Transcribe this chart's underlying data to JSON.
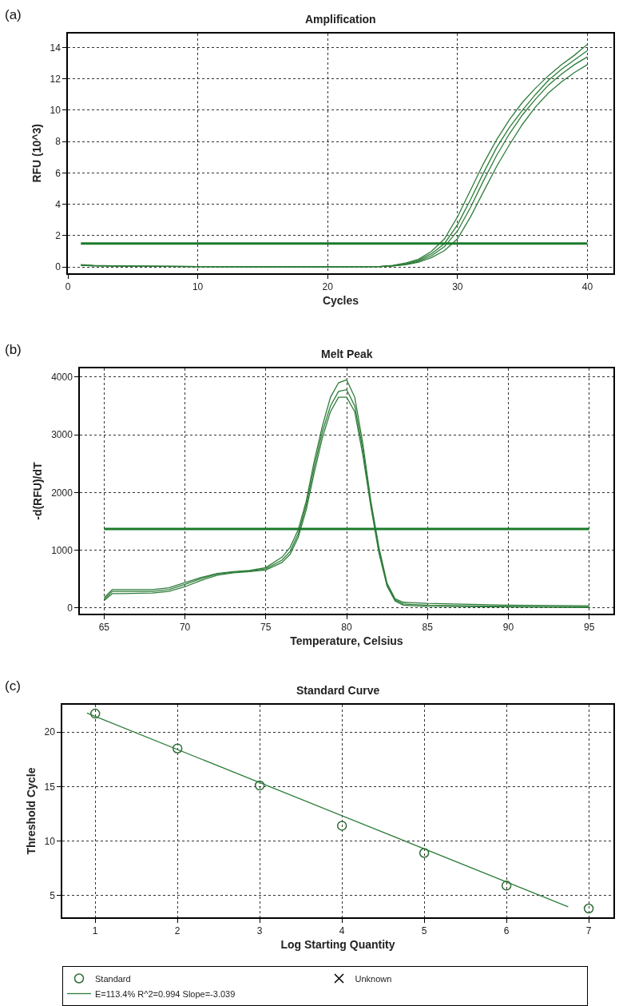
{
  "chart_data": [
    {
      "type": "line",
      "title": "Amplification",
      "xlabel": "Cycles",
      "ylabel": "RFU (10^3)",
      "annotations": [
        "(a)"
      ],
      "xlim": [
        0,
        42
      ],
      "ylim": [
        -0.4,
        14.9
      ],
      "xticks": [
        0,
        10,
        20,
        30,
        40
      ],
      "yticks": [
        0,
        2,
        4,
        6,
        8,
        10,
        12,
        14
      ],
      "grid": true,
      "line_style": "solid",
      "ref_lines": [
        {
          "axis": "y",
          "value": 1.5,
          "color": "#1a7a2a"
        }
      ],
      "series": [
        {
          "color": "#2e7d3a",
          "x": [
            1,
            2,
            5,
            10,
            15,
            20,
            24,
            25,
            26,
            27,
            28,
            29,
            30,
            31,
            32,
            33,
            34,
            35,
            36,
            37,
            38,
            39,
            40
          ],
          "values": [
            0.15,
            0.1,
            0.05,
            0.03,
            0.02,
            0.02,
            0.03,
            0.1,
            0.25,
            0.5,
            1.0,
            1.8,
            3.2,
            4.9,
            6.6,
            8.1,
            9.4,
            10.5,
            11.4,
            12.2,
            12.9,
            13.5,
            14.2
          ]
        },
        {
          "color": "#2e7d3a",
          "x": [
            1,
            2,
            5,
            10,
            15,
            20,
            24,
            25,
            26,
            27,
            28,
            29,
            30,
            31,
            32,
            33,
            34,
            35,
            36,
            37,
            38,
            39,
            40
          ],
          "values": [
            0.1,
            0.08,
            0.05,
            0.03,
            0.02,
            0.02,
            0.03,
            0.08,
            0.2,
            0.42,
            0.85,
            1.5,
            2.7,
            4.3,
            6.0,
            7.6,
            8.9,
            10.0,
            11.0,
            11.9,
            12.6,
            13.2,
            13.8
          ]
        },
        {
          "color": "#2e7d3a",
          "x": [
            1,
            2,
            5,
            10,
            15,
            20,
            24,
            25,
            26,
            27,
            28,
            29,
            30,
            31,
            32,
            33,
            34,
            35,
            36,
            37,
            38,
            39,
            40
          ],
          "values": [
            0.1,
            0.08,
            0.05,
            0.03,
            0.02,
            0.02,
            0.03,
            0.07,
            0.17,
            0.36,
            0.72,
            1.3,
            2.3,
            3.8,
            5.5,
            7.1,
            8.5,
            9.7,
            10.7,
            11.6,
            12.3,
            12.9,
            13.4
          ]
        },
        {
          "color": "#2e7d3a",
          "x": [
            1,
            2,
            5,
            10,
            15,
            20,
            24,
            25,
            26,
            27,
            28,
            29,
            30,
            31,
            32,
            33,
            34,
            35,
            36,
            37,
            38,
            39,
            40
          ],
          "values": [
            0.1,
            0.08,
            0.05,
            0.03,
            0.02,
            0.02,
            0.03,
            0.06,
            0.14,
            0.3,
            0.6,
            1.05,
            1.8,
            3.2,
            4.8,
            6.4,
            7.8,
            9.1,
            10.2,
            11.1,
            11.8,
            12.4,
            12.9
          ]
        }
      ]
    },
    {
      "type": "line",
      "title": "Melt Peak",
      "xlabel": "Temperature, Celsius",
      "ylabel": "-d(RFU)/dT",
      "annotations": [
        "(b)"
      ],
      "xlim": [
        63.5,
        96.5
      ],
      "ylim": [
        -100,
        4150
      ],
      "xticks": [
        65,
        70,
        75,
        80,
        85,
        90,
        95
      ],
      "yticks": [
        0,
        1000,
        2000,
        3000,
        4000
      ],
      "grid": true,
      "line_style": "solid",
      "ref_lines": [
        {
          "axis": "y",
          "value": 1370,
          "color": "#1a7a2a"
        }
      ],
      "series": [
        {
          "color": "#2e7d3a",
          "x": [
            65,
            65.5,
            66,
            68,
            69,
            70,
            71,
            72,
            73,
            74,
            75,
            76,
            76.5,
            77,
            77.5,
            78,
            78.5,
            79,
            79.5,
            80,
            80.5,
            81,
            81.5,
            82,
            82.5,
            83,
            83.5,
            85,
            90,
            95
          ],
          "values": [
            180,
            320,
            320,
            320,
            350,
            440,
            530,
            600,
            630,
            650,
            700,
            880,
            1050,
            1350,
            1850,
            2550,
            3150,
            3650,
            3900,
            3950,
            3650,
            2850,
            1850,
            1050,
            430,
            160,
            100,
            80,
            50,
            40
          ]
        },
        {
          "color": "#2e7d3a",
          "x": [
            65,
            65.5,
            66,
            68,
            69,
            70,
            71,
            72,
            73,
            74,
            75,
            76,
            76.5,
            77,
            77.5,
            78,
            78.5,
            79,
            79.5,
            80,
            80.5,
            81,
            81.5,
            82,
            82.5,
            83,
            83.5,
            85,
            90,
            95
          ],
          "values": [
            150,
            290,
            290,
            290,
            320,
            410,
            510,
            590,
            620,
            640,
            680,
            830,
            980,
            1280,
            1780,
            2450,
            3050,
            3500,
            3750,
            3780,
            3500,
            2750,
            1800,
            1000,
            400,
            140,
            70,
            50,
            30,
            20
          ]
        },
        {
          "color": "#2e7d3a",
          "x": [
            65,
            65.5,
            66,
            68,
            69,
            70,
            71,
            72,
            73,
            74,
            75,
            76,
            76.5,
            77,
            77.5,
            78,
            78.5,
            79,
            79.5,
            80,
            80.5,
            81,
            81.5,
            82,
            82.5,
            83,
            83.5,
            85,
            90,
            95
          ],
          "values": [
            130,
            250,
            250,
            260,
            290,
            370,
            480,
            570,
            610,
            630,
            660,
            790,
            930,
            1220,
            1700,
            2350,
            2950,
            3400,
            3650,
            3650,
            3400,
            2650,
            1750,
            950,
            380,
            120,
            50,
            30,
            20,
            10
          ]
        }
      ]
    },
    {
      "type": "scatter",
      "title": "Standard Curve",
      "xlabel": "Log Starting Quantity",
      "ylabel": "Threshold Cycle",
      "annotations": [
        "(c)"
      ],
      "xlim": [
        0.6,
        7.3
      ],
      "ylim": [
        3,
        22.5
      ],
      "xticks": [
        1,
        2,
        3,
        4,
        5,
        6,
        7
      ],
      "yticks": [
        5,
        10,
        15,
        20
      ],
      "grid": true,
      "legend": "bottom",
      "series": [
        {
          "name": "Standard",
          "type": "scatter",
          "marker": "circle",
          "color": "#2e6b35",
          "x": [
            1,
            2,
            3,
            4,
            5,
            6,
            7
          ],
          "values": [
            21.7,
            18.5,
            15.1,
            11.4,
            8.9,
            5.9,
            3.8
          ]
        },
        {
          "name": "Unknown",
          "type": "scatter",
          "marker": "cross",
          "color": "#000000",
          "values": [
            null
          ]
        },
        {
          "name": "E=113.4% R^2=0.994 Slope=-3.039",
          "type": "line",
          "color": "#2e7d3a",
          "x": [
            0.9,
            6.75
          ],
          "values": [
            21.75,
            3.96
          ]
        }
      ]
    }
  ]
}
